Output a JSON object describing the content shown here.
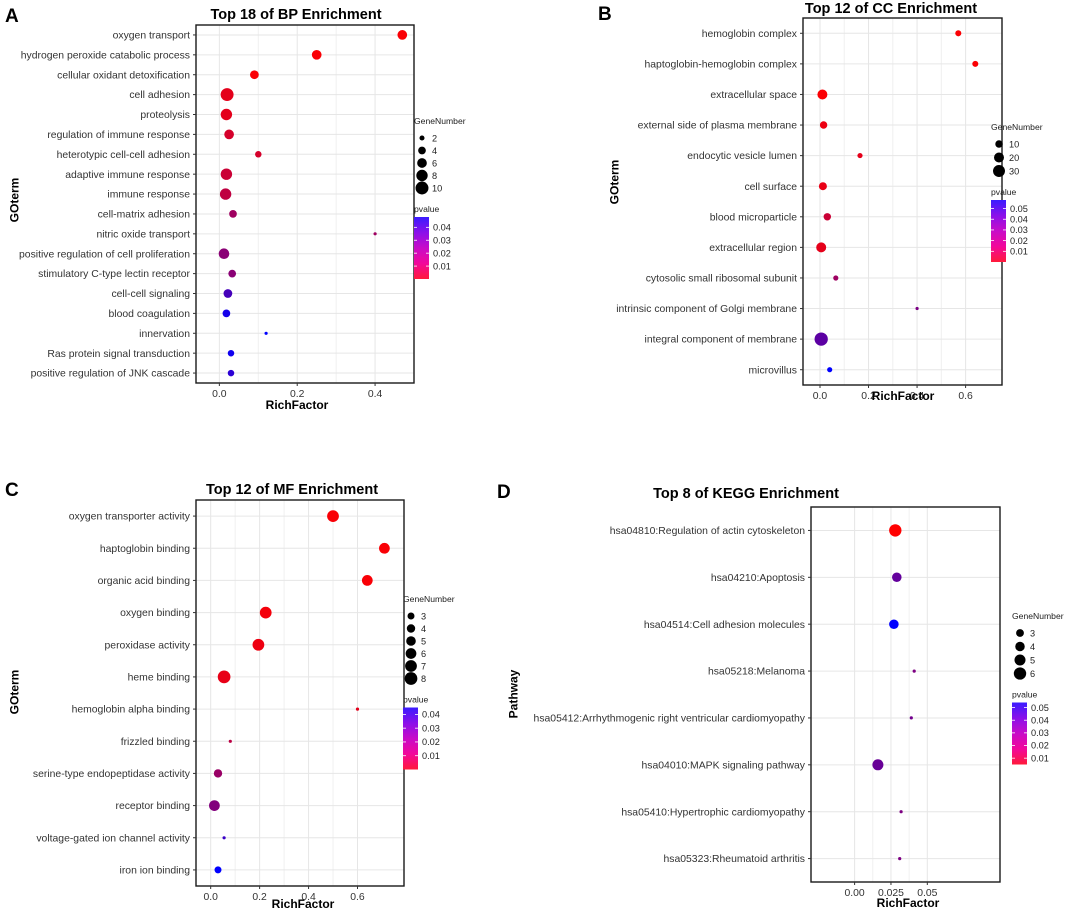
{
  "figure": {
    "colors": {
      "low_pvalue": "#ff0000",
      "high_pvalue": "#0000ff"
    },
    "panels": [
      {
        "label": "A",
        "chart_data": {
          "type": "scatter",
          "title": "Top 18 of BP Enrichment",
          "xlabel": "RichFactor",
          "ylabel": "GOterm",
          "xlim": [
            -0.06,
            0.5
          ],
          "xticks": [
            0.0,
            0.2,
            0.4
          ],
          "xtick_labels": [
            "0.0",
            "0.2",
            "0.4"
          ],
          "grid": true,
          "size_legend": {
            "title": "GeneNumber",
            "values": [
              2,
              4,
              6,
              8,
              10
            ],
            "labels": [
              "2",
              "4",
              "6",
              "8",
              "10"
            ],
            "range": [
              1,
              11
            ]
          },
          "color_legend": {
            "title": "pvalue",
            "range": [
              0.0,
              0.048
            ],
            "ticks": [
              0.04,
              0.03,
              0.02,
              0.01
            ],
            "tick_labels": [
              "0.04",
              "0.03",
              "0.02",
              "0.01"
            ]
          },
          "categories": [
            "oxygen transport",
            "hydrogen peroxide catabolic process",
            "cellular oxidant detoxification",
            "cell adhesion",
            "proteolysis",
            "regulation of immune response",
            "heterotypic cell-cell adhesion",
            "adaptive immune response",
            "immune response",
            "cell-matrix adhesion",
            "nitric oxide transport",
            "positive regulation of cell proliferation",
            "stimulatory C-type lectin receptor",
            "cell-cell signaling",
            "blood coagulation",
            "innervation",
            "Ras protein signal transduction",
            "positive regulation of JNK cascade"
          ],
          "richfactor": [
            0.47,
            0.25,
            0.09,
            0.02,
            0.018,
            0.025,
            0.1,
            0.018,
            0.016,
            0.035,
            0.4,
            0.012,
            0.033,
            0.022,
            0.018,
            0.12,
            0.03,
            0.03
          ],
          "genenumber": [
            6,
            6,
            5,
            10,
            8,
            6,
            3,
            8,
            8,
            4,
            1,
            7,
            4,
            5,
            4,
            1,
            3,
            3
          ],
          "pvalue": [
            0.001,
            0.001,
            0.001,
            0.005,
            0.005,
            0.008,
            0.008,
            0.01,
            0.012,
            0.018,
            0.018,
            0.022,
            0.022,
            0.035,
            0.044,
            0.048,
            0.045,
            0.04
          ]
        }
      },
      {
        "label": "B",
        "chart_data": {
          "type": "scatter",
          "title": "Top 12 of CC Enrichment",
          "xlabel": "RichFactor",
          "ylabel": "GOterm",
          "xlim": [
            -0.07,
            0.75
          ],
          "xticks": [
            0.0,
            0.2,
            0.4,
            0.6
          ],
          "xtick_labels": [
            "0.0",
            "0.2",
            "0.4",
            "0.6"
          ],
          "grid": true,
          "size_legend": {
            "title": "GeneNumber",
            "values": [
              10,
              20,
              30
            ],
            "labels": [
              "10",
              "20",
              "30"
            ],
            "range": [
              1,
              40
            ]
          },
          "color_legend": {
            "title": "pvalue",
            "range": [
              0.0,
              0.058
            ],
            "ticks": [
              0.05,
              0.04,
              0.03,
              0.02,
              0.01
            ],
            "tick_labels": [
              "0.05",
              "0.04",
              "0.03",
              "0.02",
              "0.01"
            ]
          },
          "categories": [
            "hemoglobin complex",
            "haptoglobin-hemoglobin complex",
            "extracellular space",
            "external side of plasma membrane",
            "endocytic vesicle lumen",
            "cell surface",
            "blood microparticle",
            "extracellular region",
            "cytosolic small ribosomal subunit",
            "intrinsic component of Golgi membrane",
            "integral component of membrane",
            "microvillus"
          ],
          "richfactor": [
            0.57,
            0.64,
            0.01,
            0.015,
            0.165,
            0.012,
            0.03,
            0.005,
            0.065,
            0.4,
            0.005,
            0.04
          ],
          "genenumber": [
            6,
            6,
            20,
            10,
            4,
            12,
            10,
            20,
            4,
            1,
            38,
            4
          ],
          "pvalue": [
            0.001,
            0.001,
            0.001,
            0.004,
            0.006,
            0.005,
            0.012,
            0.006,
            0.022,
            0.03,
            0.037,
            0.058
          ]
        }
      },
      {
        "label": "C",
        "chart_data": {
          "type": "scatter",
          "title": "Top 12 of MF Enrichment",
          "xlabel": "RichFactor",
          "ylabel": "GOterm",
          "xlim": [
            -0.06,
            0.79
          ],
          "xticks": [
            0.0,
            0.2,
            0.4,
            0.6
          ],
          "xtick_labels": [
            "0.0",
            "0.2",
            "0.4",
            "0.6"
          ],
          "grid": true,
          "size_legend": {
            "title": "GeneNumber",
            "values": [
              3,
              4,
              5,
              6,
              7,
              8
            ],
            "labels": [
              "3",
              "4",
              "5",
              "6",
              "7",
              "8"
            ],
            "range": [
              1,
              9
            ]
          },
          "color_legend": {
            "title": "pvalue",
            "range": [
              0.0,
              0.045
            ],
            "ticks": [
              0.04,
              0.03,
              0.02,
              0.01
            ],
            "tick_labels": [
              "0.04",
              "0.03",
              "0.02",
              "0.01"
            ]
          },
          "categories": [
            "oxygen transporter activity",
            "haptoglobin binding",
            "organic acid binding",
            "oxygen binding",
            "peroxidase activity",
            "heme binding",
            "hemoglobin alpha binding",
            "frizzled binding",
            "serine-type endopeptidase activity",
            "receptor binding",
            "voltage-gated ion channel activity",
            "iron ion binding"
          ],
          "richfactor": [
            0.5,
            0.71,
            0.64,
            0.225,
            0.195,
            0.055,
            0.6,
            0.08,
            0.03,
            0.015,
            0.055,
            0.03
          ],
          "genenumber": [
            7,
            6,
            6,
            7,
            7,
            8,
            1,
            1,
            4,
            6,
            1,
            3
          ],
          "pvalue": [
            0.001,
            0.001,
            0.001,
            0.002,
            0.003,
            0.004,
            0.005,
            0.012,
            0.018,
            0.022,
            0.035,
            0.045
          ]
        }
      },
      {
        "label": "D",
        "chart_data": {
          "type": "scatter",
          "title": "Top 8 of KEGG Enrichment",
          "xlabel": "RichFactor",
          "ylabel": "Pathway",
          "xlim": [
            -0.03,
            0.1
          ],
          "xticks": [
            0.0,
            0.025,
            0.05
          ],
          "xtick_labels": [
            "0.00",
            "0.025",
            "0.05"
          ],
          "grid": true,
          "size_legend": {
            "title": "GeneNumber",
            "values": [
              3,
              4,
              5,
              6
            ],
            "labels": [
              "3",
              "4",
              "5",
              "6"
            ],
            "range": [
              1,
              7
            ]
          },
          "color_legend": {
            "title": "pvalue",
            "range": [
              0.005,
              0.054
            ],
            "ticks": [
              0.05,
              0.04,
              0.03,
              0.02,
              0.01
            ],
            "tick_labels": [
              "0.05",
              "0.04",
              "0.03",
              "0.02",
              "0.01"
            ]
          },
          "categories": [
            "hsa04810:Regulation of actin cytoskeleton",
            "hsa04210:Apoptosis",
            "hsa04514:Cell adhesion molecules",
            "hsa05218:Melanoma",
            "hsa05412:Arrhythmogenic right ventricular cardiomyopathy",
            "hsa04010:MAPK signaling pathway",
            "hsa05410:Hypertrophic cardiomyopathy",
            "hsa05323:Rheumatoid arthritis"
          ],
          "richfactor": [
            0.028,
            0.029,
            0.027,
            0.041,
            0.039,
            0.016,
            0.032,
            0.031
          ],
          "genenumber": [
            6,
            4,
            4,
            1,
            1,
            5,
            1,
            1
          ],
          "pvalue": [
            0.005,
            0.035,
            0.054,
            0.03,
            0.032,
            0.034,
            0.03,
            0.03
          ]
        }
      }
    ]
  }
}
